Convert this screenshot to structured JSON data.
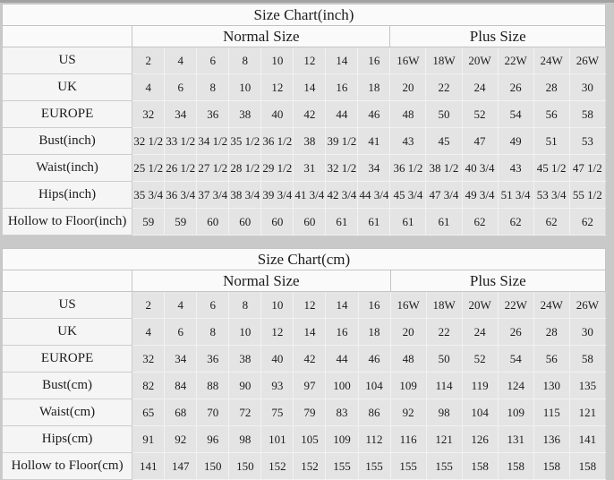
{
  "page": {
    "background": "#c9c9c9",
    "table_bg": "#fafafa",
    "data_cell_bg": "#e4e4e4",
    "label_cell_bg": "#f5f5f5"
  },
  "tables": [
    {
      "title": "Size Chart(inch)",
      "group_headers": [
        {
          "label": "",
          "span": 1
        },
        {
          "label": "Normal Size",
          "span": 8
        },
        {
          "label": "Plus Size",
          "span": 6
        }
      ],
      "rows": [
        {
          "label": "US",
          "values": [
            "2",
            "4",
            "6",
            "8",
            "10",
            "12",
            "14",
            "16",
            "16W",
            "18W",
            "20W",
            "22W",
            "24W",
            "26W"
          ]
        },
        {
          "label": "UK",
          "values": [
            "4",
            "6",
            "8",
            "10",
            "12",
            "14",
            "16",
            "18",
            "20",
            "22",
            "24",
            "26",
            "28",
            "30"
          ]
        },
        {
          "label": "EUROPE",
          "values": [
            "32",
            "34",
            "36",
            "38",
            "40",
            "42",
            "44",
            "46",
            "48",
            "50",
            "52",
            "54",
            "56",
            "58"
          ]
        },
        {
          "label": "Bust(inch)",
          "values": [
            "32 1/2",
            "33 1/2",
            "34 1/2",
            "35 1/2",
            "36 1/2",
            "38",
            "39 1/2",
            "41",
            "43",
            "45",
            "47",
            "49",
            "51",
            "53"
          ]
        },
        {
          "label": "Waist(inch)",
          "values": [
            "25 1/2",
            "26 1/2",
            "27 1/2",
            "28 1/2",
            "29 1/2",
            "31",
            "32 1/2",
            "34",
            "36 1/2",
            "38 1/2",
            "40 3/4",
            "43",
            "45 1/2",
            "47 1/2"
          ]
        },
        {
          "label": "Hips(inch)",
          "values": [
            "35 3/4",
            "36 3/4",
            "37 3/4",
            "38 3/4",
            "39 3/4",
            "41 3/4",
            "42 3/4",
            "44 3/4",
            "45 3/4",
            "47 3/4",
            "49 3/4",
            "51 3/4",
            "53 3/4",
            "55 1/2"
          ]
        },
        {
          "label": "Hollow to Floor(inch)",
          "values": [
            "59",
            "59",
            "60",
            "60",
            "60",
            "60",
            "61",
            "61",
            "61",
            "61",
            "62",
            "62",
            "62",
            "62"
          ]
        }
      ]
    },
    {
      "title": "Size Chart(cm)",
      "group_headers": [
        {
          "label": "",
          "span": 1
        },
        {
          "label": "Normal Size",
          "span": 8
        },
        {
          "label": "Plus Size",
          "span": 6
        }
      ],
      "rows": [
        {
          "label": "US",
          "values": [
            "2",
            "4",
            "6",
            "8",
            "10",
            "12",
            "14",
            "16",
            "16W",
            "18W",
            "20W",
            "22W",
            "24W",
            "26W"
          ]
        },
        {
          "label": "UK",
          "values": [
            "4",
            "6",
            "8",
            "10",
            "12",
            "14",
            "16",
            "18",
            "20",
            "22",
            "24",
            "26",
            "28",
            "30"
          ]
        },
        {
          "label": "EUROPE",
          "values": [
            "32",
            "34",
            "36",
            "38",
            "40",
            "42",
            "44",
            "46",
            "48",
            "50",
            "52",
            "54",
            "56",
            "58"
          ]
        },
        {
          "label": "Bust(cm)",
          "values": [
            "82",
            "84",
            "88",
            "90",
            "93",
            "97",
            "100",
            "104",
            "109",
            "114",
            "119",
            "124",
            "130",
            "135"
          ]
        },
        {
          "label": "Waist(cm)",
          "values": [
            "65",
            "68",
            "70",
            "72",
            "75",
            "79",
            "83",
            "86",
            "92",
            "98",
            "104",
            "109",
            "115",
            "121"
          ]
        },
        {
          "label": "Hips(cm)",
          "values": [
            "91",
            "92",
            "96",
            "98",
            "101",
            "105",
            "109",
            "112",
            "116",
            "121",
            "126",
            "131",
            "136",
            "141"
          ]
        },
        {
          "label": "Hollow to Floor(cm)",
          "values": [
            "141",
            "147",
            "150",
            "150",
            "152",
            "152",
            "155",
            "155",
            "155",
            "155",
            "158",
            "158",
            "158",
            "158"
          ]
        }
      ]
    }
  ]
}
